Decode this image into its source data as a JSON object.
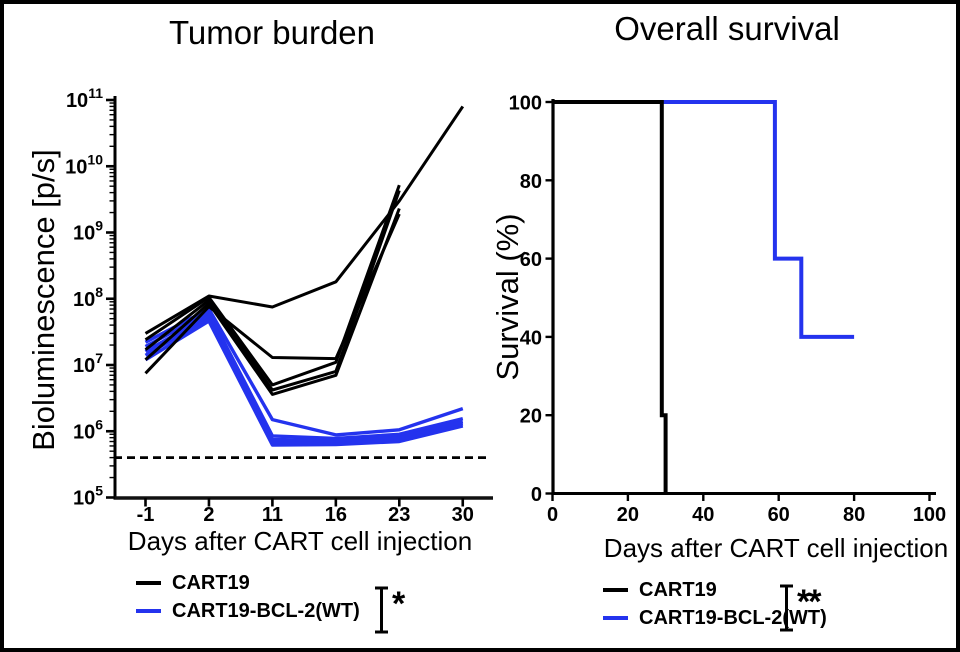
{
  "figure": {
    "background": "#ffffff",
    "border_color": "#000000"
  },
  "colors": {
    "cart19": "#000000",
    "cart19_bcl2_wt": "#2433ee"
  },
  "chart_data": [
    {
      "type": "line",
      "title": "Tumor burden",
      "xlabel": "Days after CART cell injection",
      "ylabel": "Bioluminescence [p/s]",
      "x_categories": [
        -1,
        2,
        11,
        16,
        23,
        30
      ],
      "y_scale": "log10",
      "ylim": [
        100000.0,
        100000000000.0
      ],
      "y_tick_exponents": [
        5,
        6,
        7,
        8,
        9,
        10,
        11
      ],
      "y_tick_base": "10",
      "grid": false,
      "detection_limit": 400000.0,
      "series": [
        {
          "name": "CART19 1",
          "group": "CART19",
          "color": "#000000",
          "values": [
            30000000.0,
            110000000.0,
            75000000.0,
            180000000.0,
            3000000000.0,
            80000000000.0
          ]
        },
        {
          "name": "CART19 2",
          "group": "CART19",
          "color": "#000000",
          "values": [
            24000000.0,
            105000000.0,
            5000000.0,
            11000000.0,
            5200000000.0,
            null
          ]
        },
        {
          "name": "CART19 3",
          "group": "CART19",
          "color": "#000000",
          "values": [
            17000000.0,
            95000000.0,
            4200000.0,
            8000000.0,
            4300000000.0,
            null
          ]
        },
        {
          "name": "CART19 4",
          "group": "CART19",
          "color": "#000000",
          "values": [
            12000000.0,
            85000000.0,
            3600000.0,
            7000000.0,
            2300000000.0,
            null
          ]
        },
        {
          "name": "CART19 5",
          "group": "CART19",
          "color": "#000000",
          "values": [
            7500000.0,
            76000000.0,
            13000000.0,
            12500000.0,
            1900000000.0,
            null
          ]
        },
        {
          "name": "CART19-BCL-2(WT) 1",
          "group": "CART19-BCL-2(WT)",
          "color": "#2433ee",
          "values": [
            22000000.0,
            70000000.0,
            1500000.0,
            880000.0,
            1050000.0,
            2200000.0
          ]
        },
        {
          "name": "CART19-BCL-2(WT) 2",
          "group": "CART19-BCL-2(WT)",
          "color": "#2433ee",
          "values": [
            19000000.0,
            62000000.0,
            850000.0,
            780000.0,
            900000.0,
            1550000.0
          ]
        },
        {
          "name": "CART19-BCL-2(WT) 3",
          "group": "CART19-BCL-2(WT)",
          "color": "#2433ee",
          "values": [
            16000000.0,
            56000000.0,
            750000.0,
            720000.0,
            820000.0,
            1400000.0
          ]
        },
        {
          "name": "CART19-BCL-2(WT) 4",
          "group": "CART19-BCL-2(WT)",
          "color": "#2433ee",
          "values": [
            14000000.0,
            51000000.0,
            680000.0,
            660000.0,
            750000.0,
            1300000.0
          ]
        },
        {
          "name": "CART19-BCL-2(WT) 5",
          "group": "CART19-BCL-2(WT)",
          "color": "#2433ee",
          "values": [
            12000000.0,
            46000000.0,
            620000.0,
            630000.0,
            700000.0,
            1200000.0
          ]
        }
      ],
      "legend": [
        {
          "label": "CART19",
          "color": "#000000"
        },
        {
          "label": "CART19-BCL-2(WT)",
          "color": "#2433ee"
        }
      ],
      "significance": "*"
    },
    {
      "type": "line",
      "subtype": "kaplan-meier-step",
      "title": "Overall survival",
      "xlabel": "Days after CART cell injection",
      "ylabel": "Survival (%)",
      "xlim": [
        0,
        100
      ],
      "x_ticks": [
        0,
        20,
        40,
        60,
        80,
        100
      ],
      "ylim": [
        0,
        100
      ],
      "y_ticks": [
        0,
        20,
        40,
        60,
        80,
        100
      ],
      "grid": false,
      "series": [
        {
          "name": "CART19",
          "color": "#000000",
          "points": [
            [
              0,
              100
            ],
            [
              29,
              100
            ],
            [
              29,
              20
            ],
            [
              30,
              20
            ],
            [
              30,
              0
            ]
          ]
        },
        {
          "name": "CART19-BCL-2(WT)",
          "color": "#2433ee",
          "points": [
            [
              0,
              100
            ],
            [
              59,
              100
            ],
            [
              59,
              60
            ],
            [
              66,
              60
            ],
            [
              66,
              40
            ],
            [
              80,
              40
            ]
          ]
        }
      ],
      "legend": [
        {
          "label": "CART19",
          "color": "#000000"
        },
        {
          "label": "CART19-BCL-2(WT)",
          "color": "#2433ee"
        }
      ],
      "significance": "**"
    }
  ]
}
